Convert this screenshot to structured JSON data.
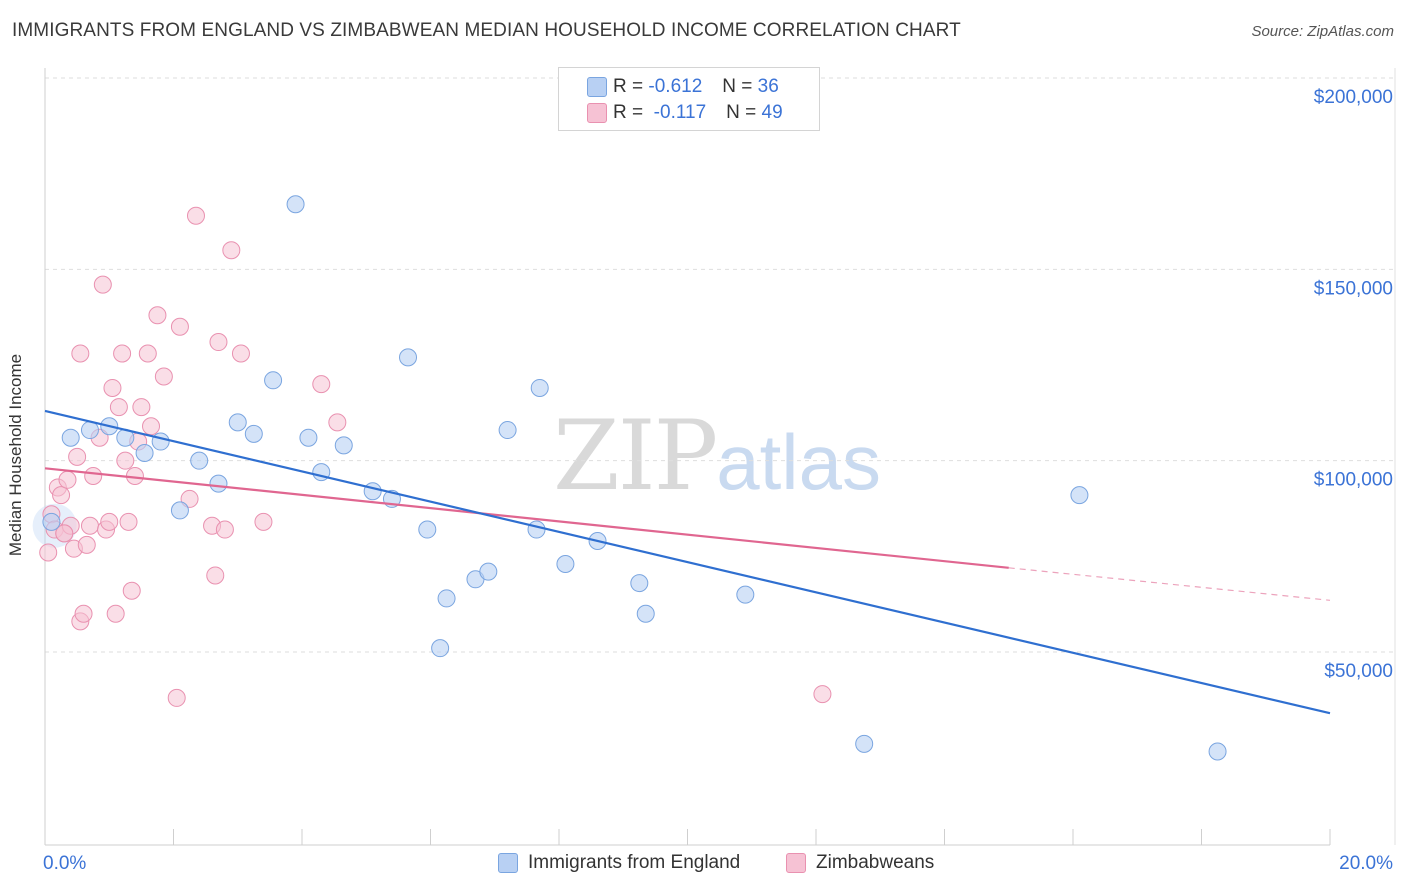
{
  "title": "IMMIGRANTS FROM ENGLAND VS ZIMBABWEAN MEDIAN HOUSEHOLD INCOME CORRELATION CHART",
  "source": "Source: ZipAtlas.com",
  "watermark": {
    "zip": "ZIP",
    "atlas": "atlas"
  },
  "legend_top": [
    {
      "r_label": "R = ",
      "r_value": "-0.612",
      "n_label": "N = ",
      "n_value": "36"
    },
    {
      "r_label": "R = ",
      "r_value": "-0.117",
      "n_label": "N = ",
      "n_value": "49"
    }
  ],
  "colors": {
    "england_fill": "#b8d0f3",
    "england_stroke": "#7aa5e0",
    "england_line": "#2f6fd0",
    "zimb_fill": "#f6c2d4",
    "zimb_stroke": "#e991b0",
    "zimb_line": "#e06690",
    "grid": "#dedede",
    "axis_text": "#3b73d6"
  },
  "chart_data": {
    "type": "scatter",
    "title": "IMMIGRANTS FROM ENGLAND VS ZIMBABWEAN MEDIAN HOUSEHOLD INCOME CORRELATION CHART",
    "xlabel": "",
    "ylabel": "Median Household Income",
    "xlim": [
      0,
      20
    ],
    "ylim": [
      0,
      210000
    ],
    "x_tick_labels": [
      "0.0%",
      "20.0%"
    ],
    "y_ticks": [
      50000,
      100000,
      150000,
      200000
    ],
    "y_tick_labels": [
      "$50,000",
      "$100,000",
      "$150,000",
      "$200,000"
    ],
    "grid": true,
    "legend_placement": "bottom",
    "series": [
      {
        "name": "Immigrants from England",
        "r": -0.612,
        "n": 36,
        "points": [
          [
            0.1,
            84000
          ],
          [
            0.4,
            106000
          ],
          [
            0.7,
            108000
          ],
          [
            1.0,
            109000
          ],
          [
            1.25,
            106000
          ],
          [
            1.55,
            102000
          ],
          [
            1.8,
            105000
          ],
          [
            2.1,
            87000
          ],
          [
            2.4,
            100000
          ],
          [
            2.7,
            94000
          ],
          [
            3.0,
            110000
          ],
          [
            3.25,
            107000
          ],
          [
            3.55,
            121000
          ],
          [
            3.9,
            167000
          ],
          [
            4.1,
            106000
          ],
          [
            4.3,
            97000
          ],
          [
            4.65,
            104000
          ],
          [
            5.1,
            92000
          ],
          [
            5.4,
            90000
          ],
          [
            5.65,
            127000
          ],
          [
            5.95,
            82000
          ],
          [
            6.15,
            51000
          ],
          [
            6.25,
            64000
          ],
          [
            6.7,
            69000
          ],
          [
            6.9,
            71000
          ],
          [
            7.2,
            108000
          ],
          [
            7.65,
            82000
          ],
          [
            7.7,
            119000
          ],
          [
            8.1,
            73000
          ],
          [
            8.6,
            79000
          ],
          [
            9.25,
            68000
          ],
          [
            9.35,
            60000
          ],
          [
            10.9,
            65000
          ],
          [
            12.75,
            26000
          ],
          [
            16.1,
            91000
          ],
          [
            18.25,
            24000
          ]
        ],
        "trend": {
          "x": [
            0,
            20
          ],
          "y": [
            113000,
            34000
          ]
        }
      },
      {
        "name": "Zimbabweans",
        "r": -0.117,
        "n": 49,
        "points": [
          [
            0.05,
            76000
          ],
          [
            0.1,
            86000
          ],
          [
            0.15,
            82000
          ],
          [
            0.2,
            93000
          ],
          [
            0.25,
            91000
          ],
          [
            0.3,
            81000
          ],
          [
            0.35,
            95000
          ],
          [
            0.4,
            83000
          ],
          [
            0.45,
            77000
          ],
          [
            0.5,
            101000
          ],
          [
            0.55,
            58000
          ],
          [
            0.6,
            60000
          ],
          [
            0.65,
            78000
          ],
          [
            0.7,
            83000
          ],
          [
            0.75,
            96000
          ],
          [
            0.85,
            106000
          ],
          [
            0.9,
            146000
          ],
          [
            0.95,
            82000
          ],
          [
            1.0,
            84000
          ],
          [
            1.05,
            119000
          ],
          [
            1.1,
            60000
          ],
          [
            1.15,
            114000
          ],
          [
            1.2,
            128000
          ],
          [
            1.25,
            100000
          ],
          [
            1.3,
            84000
          ],
          [
            1.35,
            66000
          ],
          [
            1.4,
            96000
          ],
          [
            1.45,
            105000
          ],
          [
            1.5,
            114000
          ],
          [
            1.6,
            128000
          ],
          [
            1.65,
            109000
          ],
          [
            1.75,
            138000
          ],
          [
            1.85,
            122000
          ],
          [
            2.05,
            38000
          ],
          [
            2.1,
            135000
          ],
          [
            2.25,
            90000
          ],
          [
            2.35,
            164000
          ],
          [
            2.6,
            83000
          ],
          [
            2.65,
            70000
          ],
          [
            2.7,
            131000
          ],
          [
            2.8,
            82000
          ],
          [
            2.9,
            155000
          ],
          [
            3.05,
            128000
          ],
          [
            3.4,
            84000
          ],
          [
            4.3,
            120000
          ],
          [
            4.55,
            110000
          ],
          [
            12.1,
            39000
          ],
          [
            0.3,
            81000
          ],
          [
            0.55,
            128000
          ]
        ],
        "trend": {
          "x": [
            0,
            15
          ],
          "y": [
            98000,
            72000
          ]
        },
        "trend_dashed": {
          "x": [
            15,
            20
          ],
          "y": [
            72000,
            63500
          ]
        }
      }
    ]
  },
  "legend_bottom": [
    {
      "label": "Immigrants from England"
    },
    {
      "label": "Zimbabweans"
    }
  ]
}
